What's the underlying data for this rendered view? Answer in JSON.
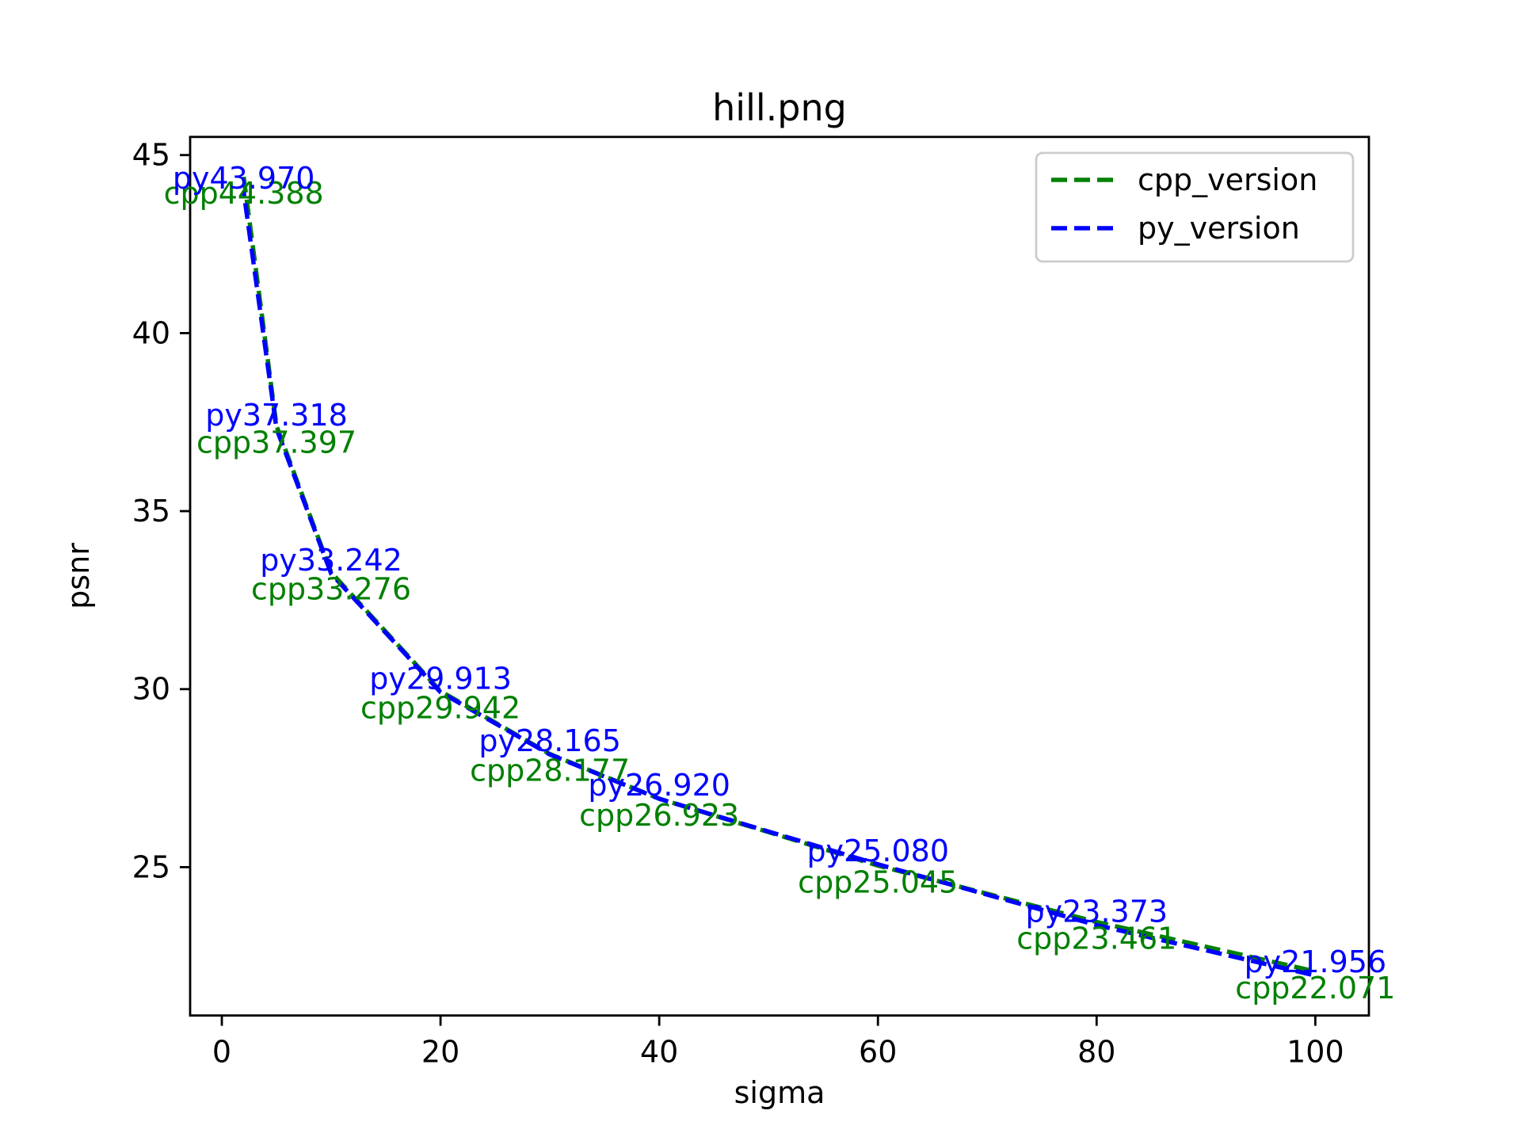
{
  "figure": {
    "background": "#ffffff",
    "text_color": "#000000"
  },
  "chart_data": {
    "type": "line",
    "title": "hill.png",
    "xlabel": "sigma",
    "ylabel": "psnr",
    "x": [
      2,
      5,
      10,
      20,
      30,
      40,
      60,
      80,
      100
    ],
    "series": [
      {
        "name": "cpp_version",
        "color": "#008000",
        "linestyle": "dashed",
        "label_side": "below",
        "label_prefix": "cpp",
        "values": [
          44.388,
          37.397,
          33.276,
          29.942,
          28.177,
          26.923,
          25.045,
          23.461,
          22.071
        ],
        "point_labels": [
          "cpp44.388",
          "cpp37.397",
          "cpp33.276",
          "cpp29.942",
          "cpp28.177",
          "cpp26.923",
          "cpp25.045",
          "cpp23.461",
          "cpp22.071"
        ]
      },
      {
        "name": "py_version",
        "color": "#0000ff",
        "linestyle": "dashed",
        "label_side": "above",
        "label_prefix": "py",
        "values": [
          43.97,
          37.318,
          33.242,
          29.913,
          28.165,
          26.92,
          25.08,
          23.373,
          21.956
        ],
        "point_labels": [
          "py43.970",
          "py37.318",
          "py33.242",
          "py29.913",
          "py28.165",
          "py26.920",
          "py25.080",
          "py23.373",
          "py21.956"
        ]
      }
    ],
    "xticks": [
      0,
      20,
      40,
      60,
      80,
      100
    ],
    "yticks": [
      25,
      30,
      35,
      40,
      45
    ],
    "xlim": [
      -2.9,
      104.9
    ],
    "ylim": [
      20.834,
      45.51
    ],
    "grid": false,
    "legend": {
      "position": "upper right",
      "entries": [
        "cpp_version",
        "py_version"
      ],
      "edge_color": "#cccccc",
      "face_color": "#ffffff"
    },
    "axes_color": "#000000"
  }
}
